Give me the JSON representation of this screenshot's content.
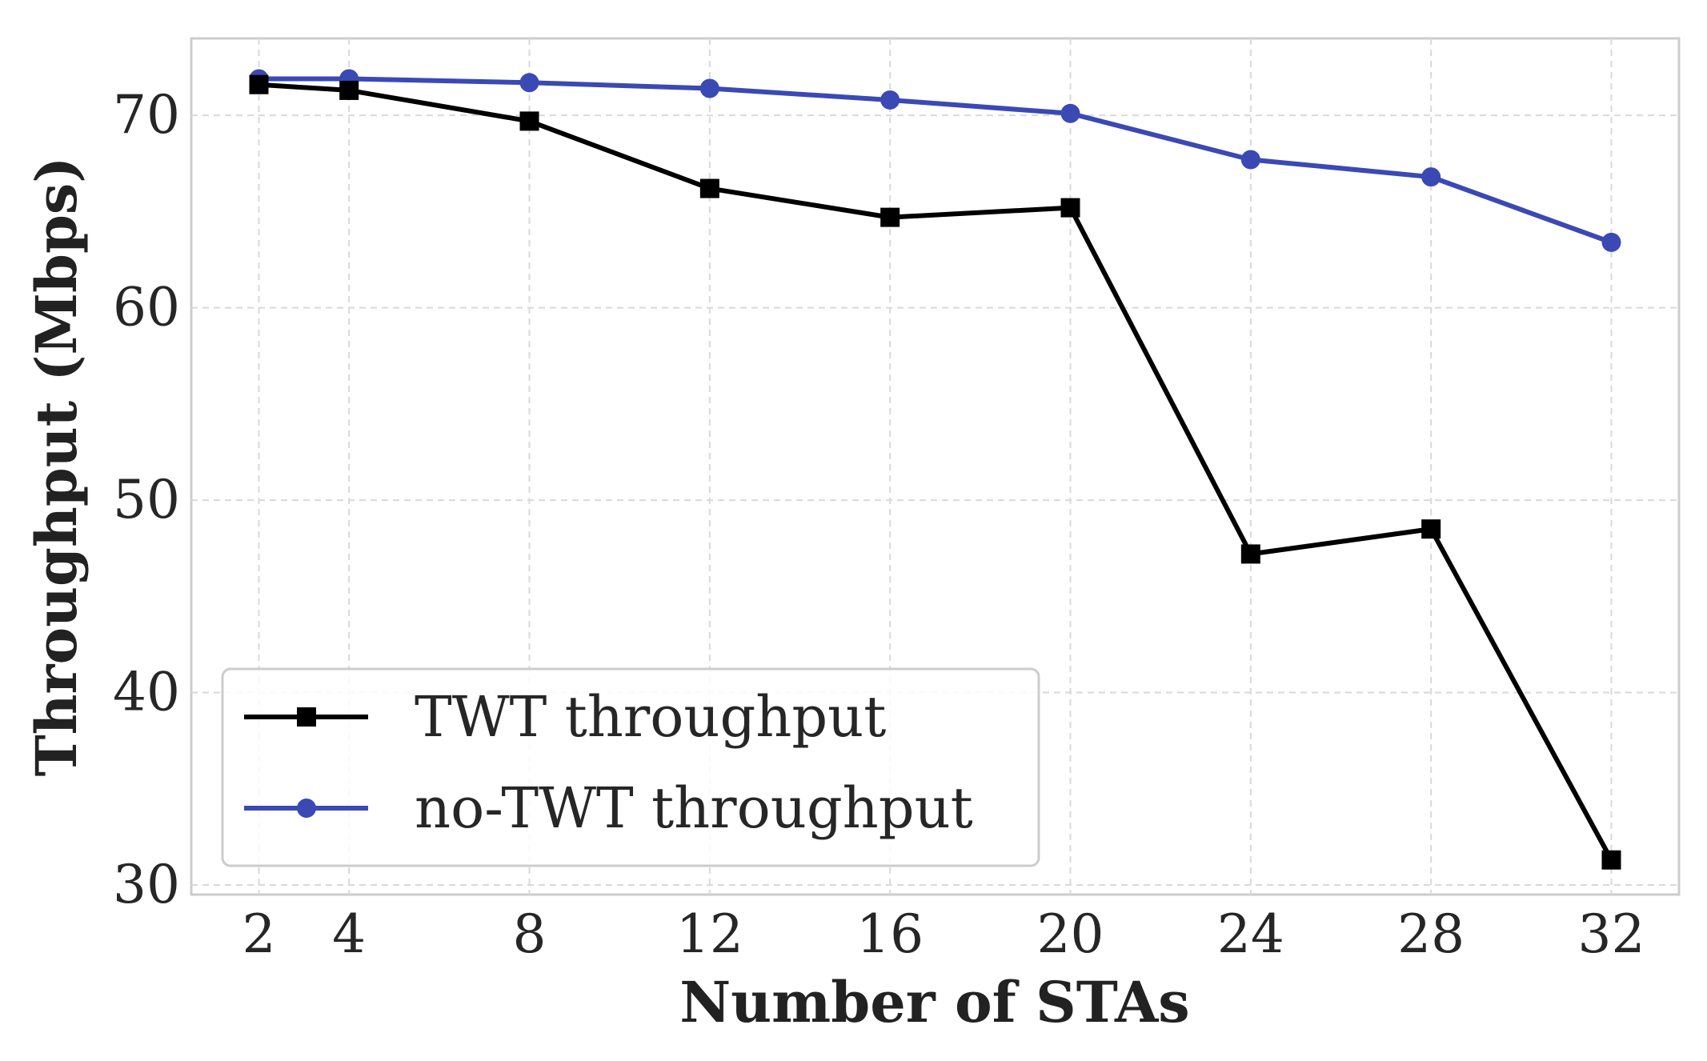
{
  "chart_data": {
    "type": "line",
    "title": "",
    "xlabel": "Number of STAs",
    "ylabel": "Throughput (Mbps)",
    "x": [
      2,
      4,
      8,
      12,
      16,
      20,
      24,
      28,
      32
    ],
    "x_ticks": [
      "2",
      "4",
      "8",
      "12",
      "16",
      "20",
      "24",
      "28",
      "32"
    ],
    "y_ticks": [
      "30",
      "40",
      "50",
      "60",
      "70"
    ],
    "xlim": [
      0.5,
      33.5
    ],
    "ylim": [
      29.5,
      74
    ],
    "grid": true,
    "legend_position": "lower-left",
    "series": [
      {
        "name": "TWT throughput",
        "color": "#000000",
        "marker": "square",
        "values": [
          71.6,
          71.3,
          69.7,
          66.2,
          64.7,
          65.2,
          47.2,
          48.5,
          31.3
        ]
      },
      {
        "name": "no-TWT throughput",
        "color": "#3b49b5",
        "marker": "circle",
        "values": [
          71.9,
          71.9,
          71.7,
          71.4,
          70.8,
          70.1,
          67.7,
          66.8,
          63.4
        ]
      }
    ]
  }
}
